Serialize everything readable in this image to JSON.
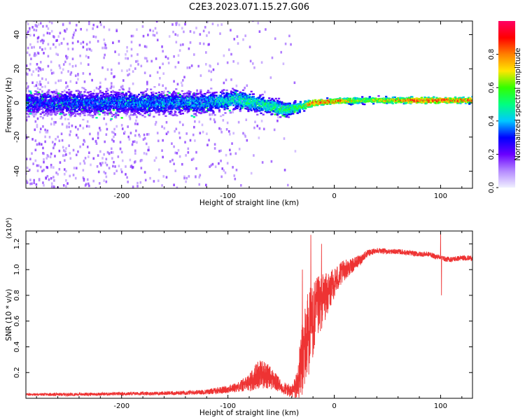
{
  "figure": {
    "title": "C2E3.2023.071.15.27.G06"
  },
  "chart_data": [
    {
      "type": "heatmap",
      "title": "C2E3.2023.071.15.27.G06",
      "xlabel": "Height of straight line (km)",
      "ylabel": "Frequency (Hz)",
      "xlim": [
        -290,
        130
      ],
      "ylim": [
        -50,
        48
      ],
      "x_ticks": [
        -200,
        -100,
        0,
        100
      ],
      "y_ticks": [
        -40,
        -20,
        0,
        20,
        40
      ],
      "colorbar": {
        "label": "Normalized spectral amplitude",
        "range": [
          0.0,
          1.0
        ],
        "ticks": [
          0.0,
          0.2,
          0.4,
          0.6,
          0.8
        ],
        "colors": [
          "#f0f0ff",
          "#b489ff",
          "#6a00ff",
          "#0000ff",
          "#00c8ff",
          "#00ff80",
          "#32ff00",
          "#ffe600",
          "#ff8000",
          "#ff0000",
          "#ff0064"
        ]
      },
      "ridge": [
        {
          "x": -285,
          "center_hz": 0,
          "width_hz": 10,
          "amplitude": 0.3
        },
        {
          "x": -200,
          "center_hz": 0,
          "width_hz": 10,
          "amplitude": 0.35
        },
        {
          "x": -120,
          "center_hz": 0,
          "width_hz": 9,
          "amplitude": 0.38
        },
        {
          "x": -90,
          "center_hz": 2,
          "width_hz": 8,
          "amplitude": 0.45
        },
        {
          "x": -60,
          "center_hz": -2,
          "width_hz": 7,
          "amplitude": 0.5
        },
        {
          "x": -45,
          "center_hz": -4,
          "width_hz": 6,
          "amplitude": 0.5
        },
        {
          "x": -30,
          "center_hz": -2,
          "width_hz": 4,
          "amplitude": 0.55
        },
        {
          "x": -20,
          "center_hz": 0,
          "width_hz": 2.5,
          "amplitude": 0.85
        },
        {
          "x": 0,
          "center_hz": 1,
          "width_hz": 2.5,
          "amplitude": 0.8
        },
        {
          "x": 30,
          "center_hz": 1.5,
          "width_hz": 2.5,
          "amplitude": 0.6
        },
        {
          "x": 80,
          "center_hz": 1.5,
          "width_hz": 2.5,
          "amplitude": 0.85
        },
        {
          "x": 130,
          "center_hz": 1.5,
          "width_hz": 2.5,
          "amplitude": 0.8
        }
      ]
    },
    {
      "type": "line",
      "xlabel": "Height of straight line (km)",
      "ylabel": "SNR (10 * v/v)",
      "y_multiplier": "(x10⁴)",
      "xlim": [
        -290,
        130
      ],
      "ylim": [
        0,
        1.3
      ],
      "x_ticks": [
        -200,
        -100,
        0,
        100
      ],
      "y_ticks": [
        0.2,
        0.4,
        0.6,
        0.8,
        1.0,
        1.2
      ],
      "y_tick_labels": [
        "0.2",
        "0.4",
        "0.6",
        "0.8",
        "1.0",
        "1.2"
      ],
      "series": [
        {
          "color": "#ee3333",
          "x": [
            -290,
            -250,
            -200,
            -150,
            -120,
            -100,
            -90,
            -80,
            -70,
            -60,
            -50,
            -40,
            -35,
            -30,
            -25,
            -20,
            -15,
            -10,
            -5,
            0,
            5,
            10,
            15,
            20,
            25,
            30,
            40,
            50,
            60,
            70,
            80,
            90,
            95,
            100,
            102,
            105,
            110,
            120,
            130
          ],
          "values": [
            0.03,
            0.03,
            0.035,
            0.04,
            0.05,
            0.07,
            0.09,
            0.12,
            0.2,
            0.16,
            0.09,
            0.05,
            0.1,
            0.3,
            0.5,
            0.6,
            0.7,
            0.78,
            0.82,
            0.9,
            0.95,
            1.0,
            1.02,
            1.05,
            1.08,
            1.12,
            1.15,
            1.14,
            1.14,
            1.13,
            1.12,
            1.12,
            1.1,
            1.1,
            1.09,
            1.08,
            1.08,
            1.09,
            1.09
          ],
          "noise": [
            0.01,
            0.012,
            0.012,
            0.015,
            0.02,
            0.03,
            0.04,
            0.07,
            0.12,
            0.09,
            0.05,
            0.05,
            0.12,
            0.3,
            0.35,
            0.3,
            0.25,
            0.2,
            0.15,
            0.12,
            0.1,
            0.08,
            0.06,
            0.05,
            0.04,
            0.03,
            0.02,
            0.02,
            0.02,
            0.02,
            0.02,
            0.02,
            0.02,
            0.02,
            0.02,
            0.02,
            0.02,
            0.02,
            0.02
          ],
          "spikes": [
            {
              "x": 100,
              "value": 1.29
            },
            {
              "x": 100.8,
              "value": 0.8
            },
            {
              "x": -22,
              "value": 1.27
            },
            {
              "x": -30,
              "value": 1.0
            },
            {
              "x": -12,
              "value": 1.2
            }
          ]
        }
      ]
    }
  ]
}
